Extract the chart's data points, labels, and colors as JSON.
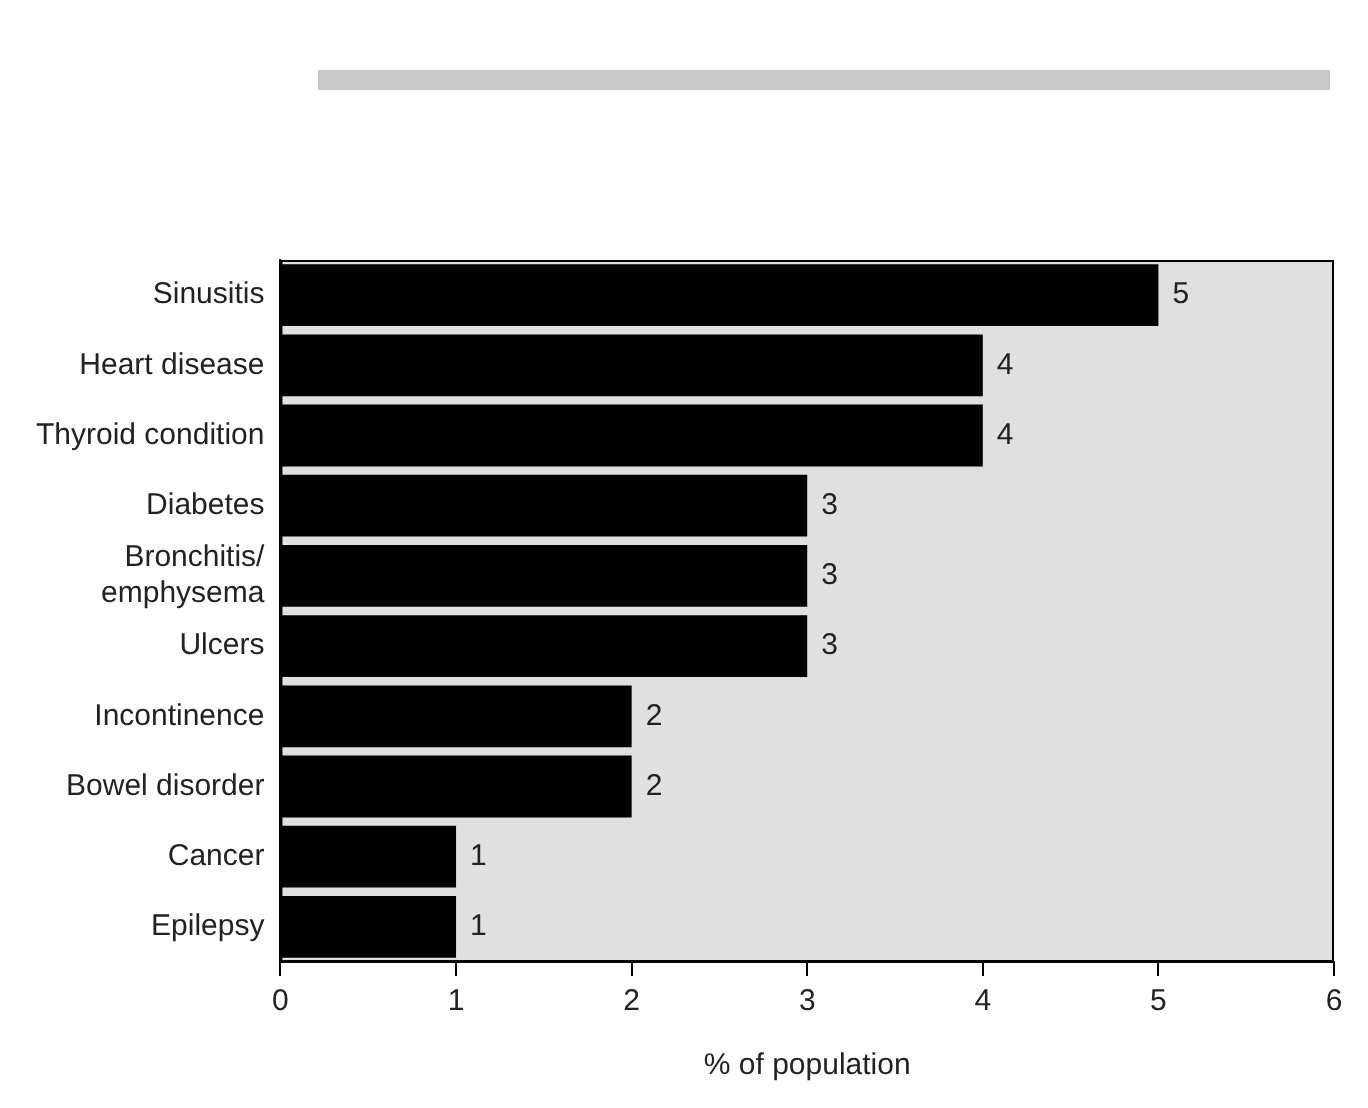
{
  "chart_data": {
    "type": "bar",
    "orientation": "horizontal",
    "xlabel": "% of population",
    "categories": [
      "Sinusitis",
      "Heart disease",
      "Thyroid condition",
      "Diabetes",
      "Bronchitis/\nemphysema",
      "Ulcers",
      "Incontinence",
      "Bowel disorder",
      "Cancer",
      "Epilepsy"
    ],
    "values": [
      5,
      4,
      4,
      3,
      3,
      3,
      2,
      2,
      1,
      1
    ],
    "color": "#000000",
    "xlim": [
      0,
      6
    ],
    "xticks": [
      0,
      1,
      2,
      3,
      4,
      5,
      6
    ],
    "grid": false,
    "legend": false,
    "data_labels": true
  }
}
